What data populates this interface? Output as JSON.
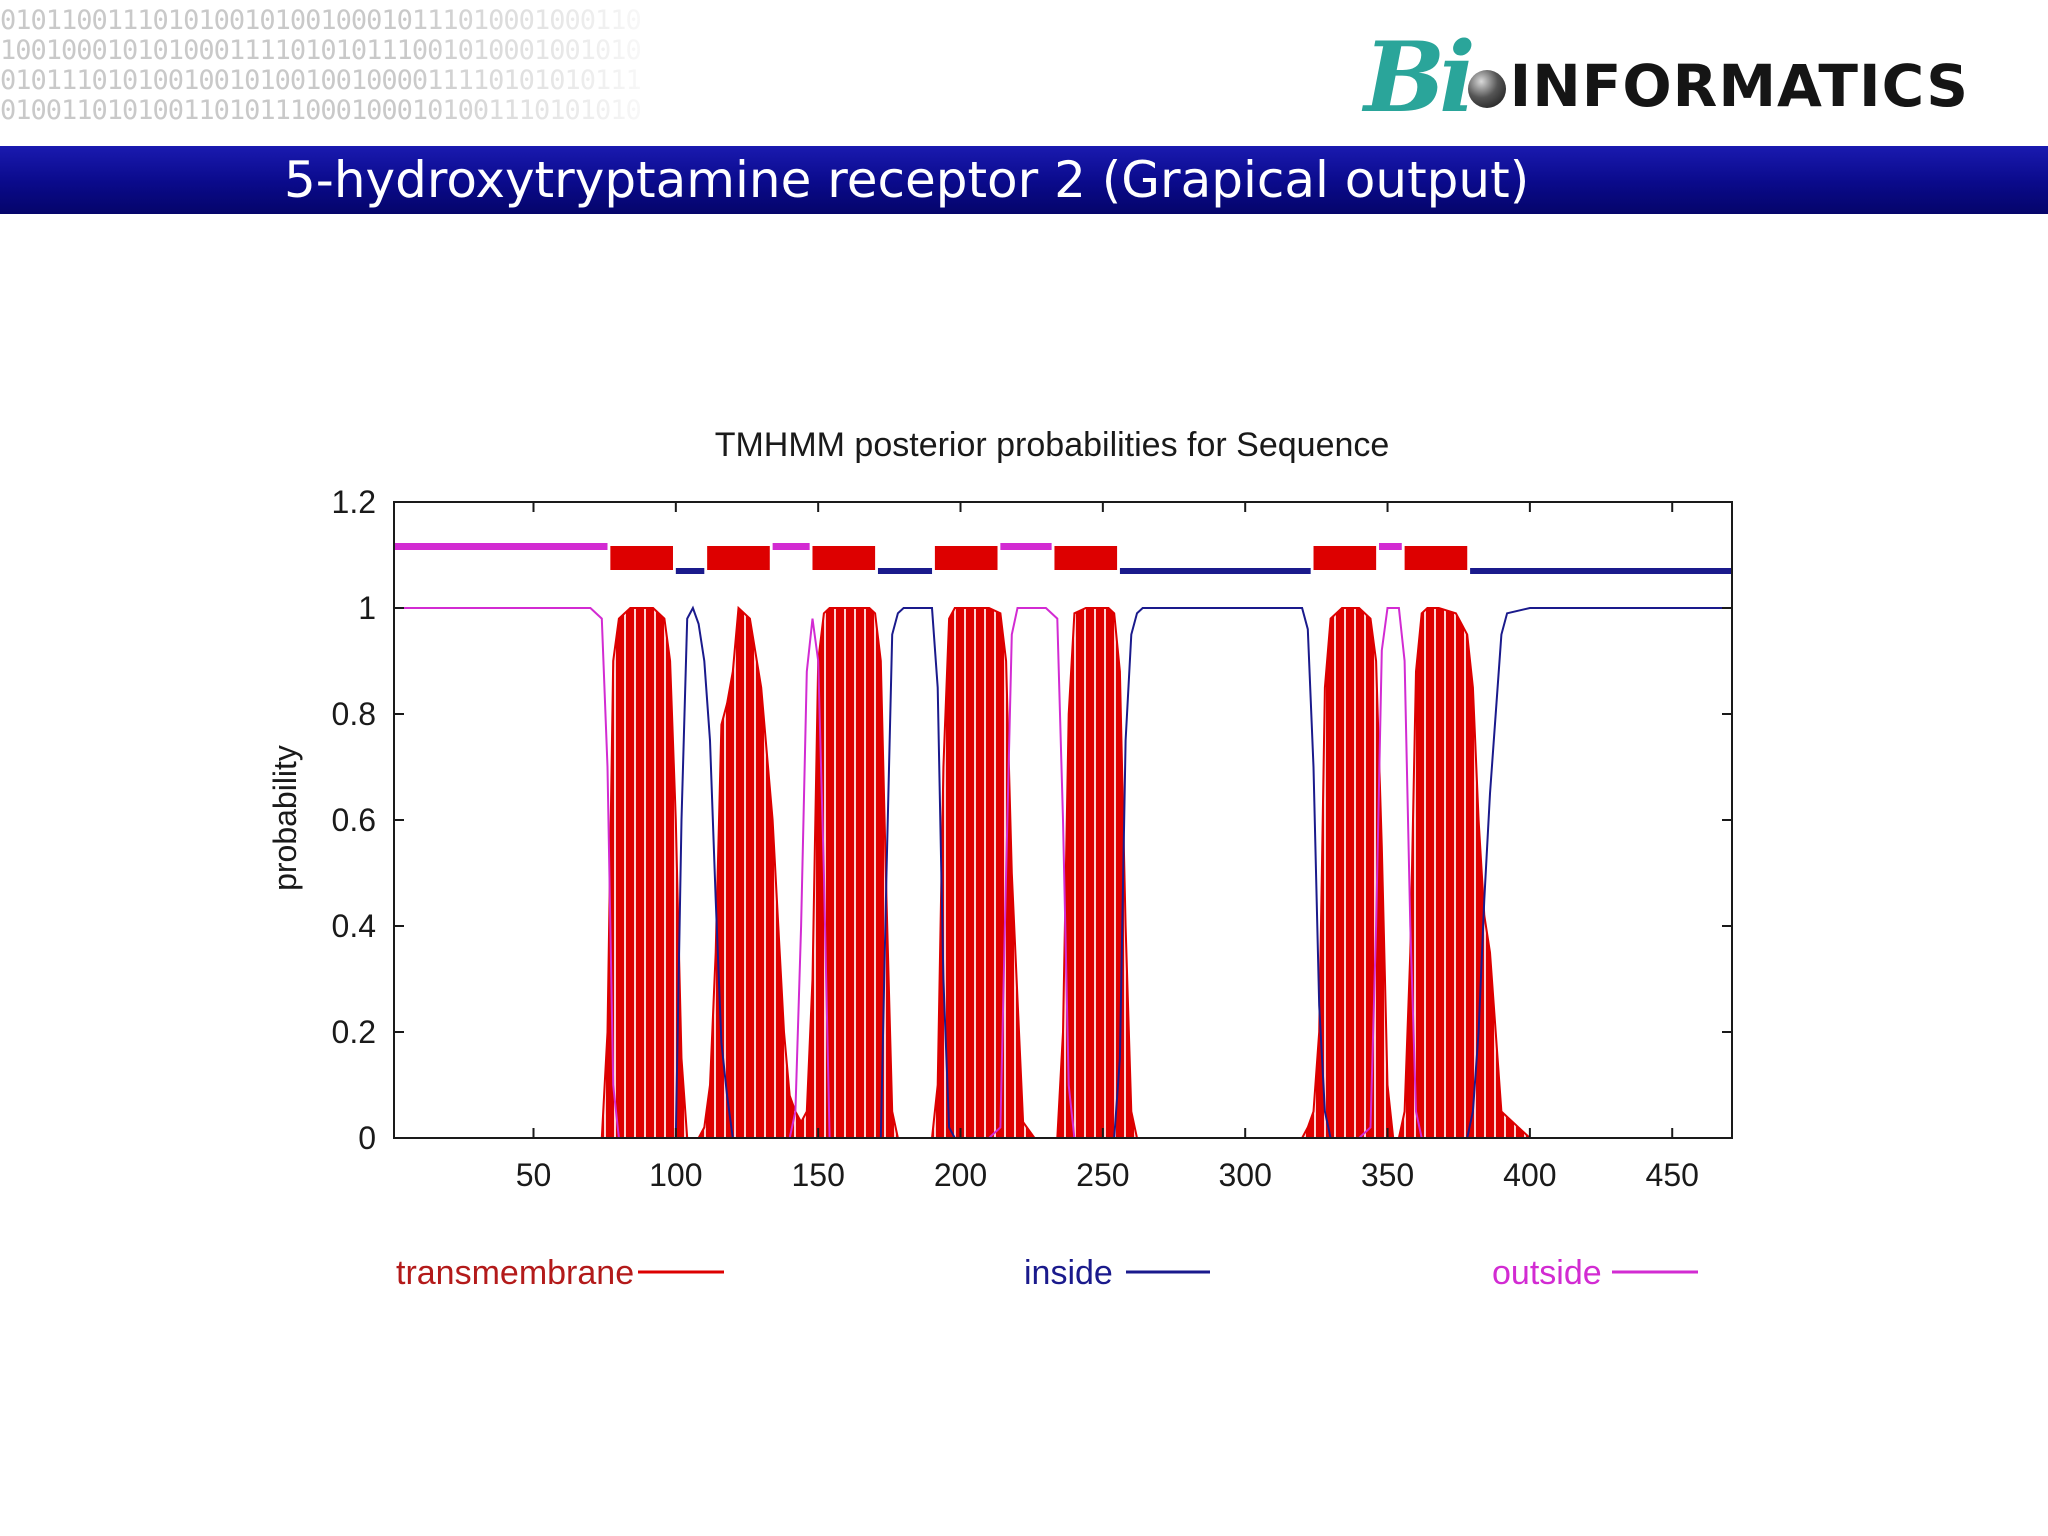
{
  "slide": {
    "title": "5-hydroxytryptamine receptor 2 (Grapical output)",
    "banner_color": "#0a0a8a"
  },
  "logo": {
    "bi_text": "Bi",
    "word_text": "INFORMATICS",
    "bi_color": "#2aa59a"
  },
  "background": {
    "binary_lines": [
      "010110011101010010100100010111010001000110",
      "100100010101000111101010111001010001001010",
      "010111010100100101001001000011110101010111",
      "010011010100110101110001000101001110101010"
    ]
  },
  "chart_data": {
    "type": "line",
    "title": "TMHMM posterior probabilities for Sequence",
    "xlabel": "",
    "ylabel": "probability",
    "xlim": [
      1,
      471
    ],
    "ylim": [
      0,
      1.2
    ],
    "xticks": [
      50,
      100,
      150,
      200,
      250,
      300,
      350,
      400,
      450
    ],
    "yticks": [
      0,
      0.2,
      0.4,
      0.6,
      0.8,
      1,
      1.2
    ],
    "ytick_labels": [
      "0",
      "0.2",
      "0.4",
      "0.6",
      "0.8",
      "1",
      "1.2"
    ],
    "grid": false,
    "legend_position": "bottom",
    "colors": {
      "transmembrane": "#dd0000",
      "inside": "#1a1a8c",
      "outside": "#d22bd2",
      "stripes": "#ffd0d0"
    },
    "series": [
      {
        "name": "transmembrane",
        "color": "#dd0000",
        "x": [
          1,
          74,
          76,
          78,
          80,
          84,
          92,
          96,
          98,
          100,
          102,
          104,
          106,
          108,
          110,
          112,
          114,
          116,
          118,
          120,
          122,
          126,
          130,
          134,
          136,
          138,
          140,
          142,
          144,
          146,
          148,
          150,
          152,
          154,
          160,
          168,
          170,
          172,
          174,
          176,
          178,
          180,
          190,
          192,
          194,
          196,
          198,
          200,
          210,
          214,
          216,
          218,
          222,
          226,
          230,
          234,
          236,
          238,
          240,
          244,
          252,
          254,
          256,
          258,
          260,
          262,
          270,
          300,
          320,
          322,
          324,
          326,
          328,
          330,
          334,
          340,
          344,
          346,
          348,
          350,
          352,
          354,
          356,
          358,
          360,
          362,
          364,
          368,
          374,
          378,
          380,
          382,
          384,
          386,
          388,
          390,
          400,
          430,
          471
        ],
        "y": [
          0,
          0,
          0.2,
          0.9,
          0.98,
          1,
          1,
          0.98,
          0.9,
          0.6,
          0.15,
          0,
          0,
          0,
          0.02,
          0.1,
          0.35,
          0.78,
          0.82,
          0.88,
          1,
          0.98,
          0.85,
          0.6,
          0.4,
          0.2,
          0.08,
          0.05,
          0.03,
          0.05,
          0.3,
          0.9,
          0.99,
          1,
          1,
          1,
          0.99,
          0.9,
          0.45,
          0.05,
          0,
          0,
          0,
          0.1,
          0.7,
          0.98,
          1,
          1,
          1,
          0.99,
          0.9,
          0.5,
          0.03,
          0,
          0,
          0,
          0.2,
          0.8,
          0.99,
          1,
          1,
          0.99,
          0.88,
          0.4,
          0.05,
          0,
          0,
          0,
          0,
          0.02,
          0.05,
          0.2,
          0.85,
          0.98,
          1,
          1,
          0.98,
          0.9,
          0.55,
          0.1,
          0,
          0,
          0.05,
          0.35,
          0.88,
          0.99,
          1,
          1,
          0.99,
          0.95,
          0.85,
          0.6,
          0.42,
          0.35,
          0.2,
          0.05,
          0,
          0,
          0
        ]
      },
      {
        "name": "inside",
        "color": "#1a1a8c",
        "x": [
          1,
          74,
          100,
          102,
          104,
          106,
          108,
          110,
          112,
          114,
          116,
          118,
          120,
          160,
          170,
          172,
          174,
          176,
          178,
          180,
          190,
          192,
          194,
          196,
          198,
          200,
          220,
          254,
          256,
          258,
          260,
          262,
          264,
          266,
          320,
          322,
          324,
          326,
          328,
          330,
          332,
          334,
          340,
          360,
          362,
          364,
          366,
          368,
          370,
          374,
          376,
          378,
          380,
          382,
          384,
          386,
          388,
          390,
          392,
          400,
          471
        ],
        "y": [
          0,
          0,
          0,
          0.6,
          0.98,
          1,
          0.97,
          0.9,
          0.75,
          0.45,
          0.18,
          0.08,
          0,
          0,
          0,
          0,
          0.5,
          0.95,
          0.99,
          1,
          1,
          0.85,
          0.3,
          0.02,
          0,
          0,
          0,
          0,
          0.15,
          0.75,
          0.95,
          0.99,
          1,
          1,
          1,
          0.96,
          0.7,
          0.25,
          0.05,
          0,
          0,
          0,
          0,
          0,
          0,
          0,
          0,
          0,
          0,
          0,
          0,
          0,
          0.05,
          0.2,
          0.45,
          0.65,
          0.8,
          0.95,
          0.99,
          1,
          1
        ]
      },
      {
        "name": "outside",
        "color": "#d22bd2",
        "x": [
          1,
          70,
          74,
          76,
          78,
          80,
          100,
          140,
          142,
          144,
          146,
          148,
          150,
          152,
          154,
          200,
          210,
          214,
          216,
          218,
          220,
          222,
          224,
          226,
          230,
          234,
          236,
          238,
          240,
          340,
          344,
          346,
          348,
          350,
          352,
          354,
          356,
          358,
          360,
          362,
          364,
          471
        ],
        "y": [
          1,
          1,
          0.98,
          0.7,
          0.1,
          0,
          0,
          0,
          0.05,
          0.4,
          0.88,
          0.98,
          0.9,
          0.5,
          0,
          0,
          0,
          0.02,
          0.5,
          0.95,
          1,
          1,
          1,
          1,
          1,
          0.98,
          0.6,
          0.1,
          0,
          0,
          0.02,
          0.4,
          0.92,
          1,
          1,
          1,
          0.9,
          0.4,
          0.05,
          0,
          0,
          0
        ]
      }
    ],
    "topology": [
      {
        "region": "outside",
        "start": 1,
        "end": 76
      },
      {
        "region": "transmembrane",
        "start": 77,
        "end": 99
      },
      {
        "region": "inside",
        "start": 100,
        "end": 110
      },
      {
        "region": "transmembrane",
        "start": 111,
        "end": 133
      },
      {
        "region": "outside",
        "start": 134,
        "end": 147
      },
      {
        "region": "transmembrane",
        "start": 148,
        "end": 170
      },
      {
        "region": "inside",
        "start": 171,
        "end": 190
      },
      {
        "region": "transmembrane",
        "start": 191,
        "end": 213
      },
      {
        "region": "outside",
        "start": 214,
        "end": 232
      },
      {
        "region": "transmembrane",
        "start": 233,
        "end": 255
      },
      {
        "region": "inside",
        "start": 256,
        "end": 323
      },
      {
        "region": "transmembrane",
        "start": 324,
        "end": 346
      },
      {
        "region": "outside",
        "start": 347,
        "end": 355
      },
      {
        "region": "transmembrane",
        "start": 356,
        "end": 378
      },
      {
        "region": "inside",
        "start": 379,
        "end": 471
      }
    ]
  }
}
